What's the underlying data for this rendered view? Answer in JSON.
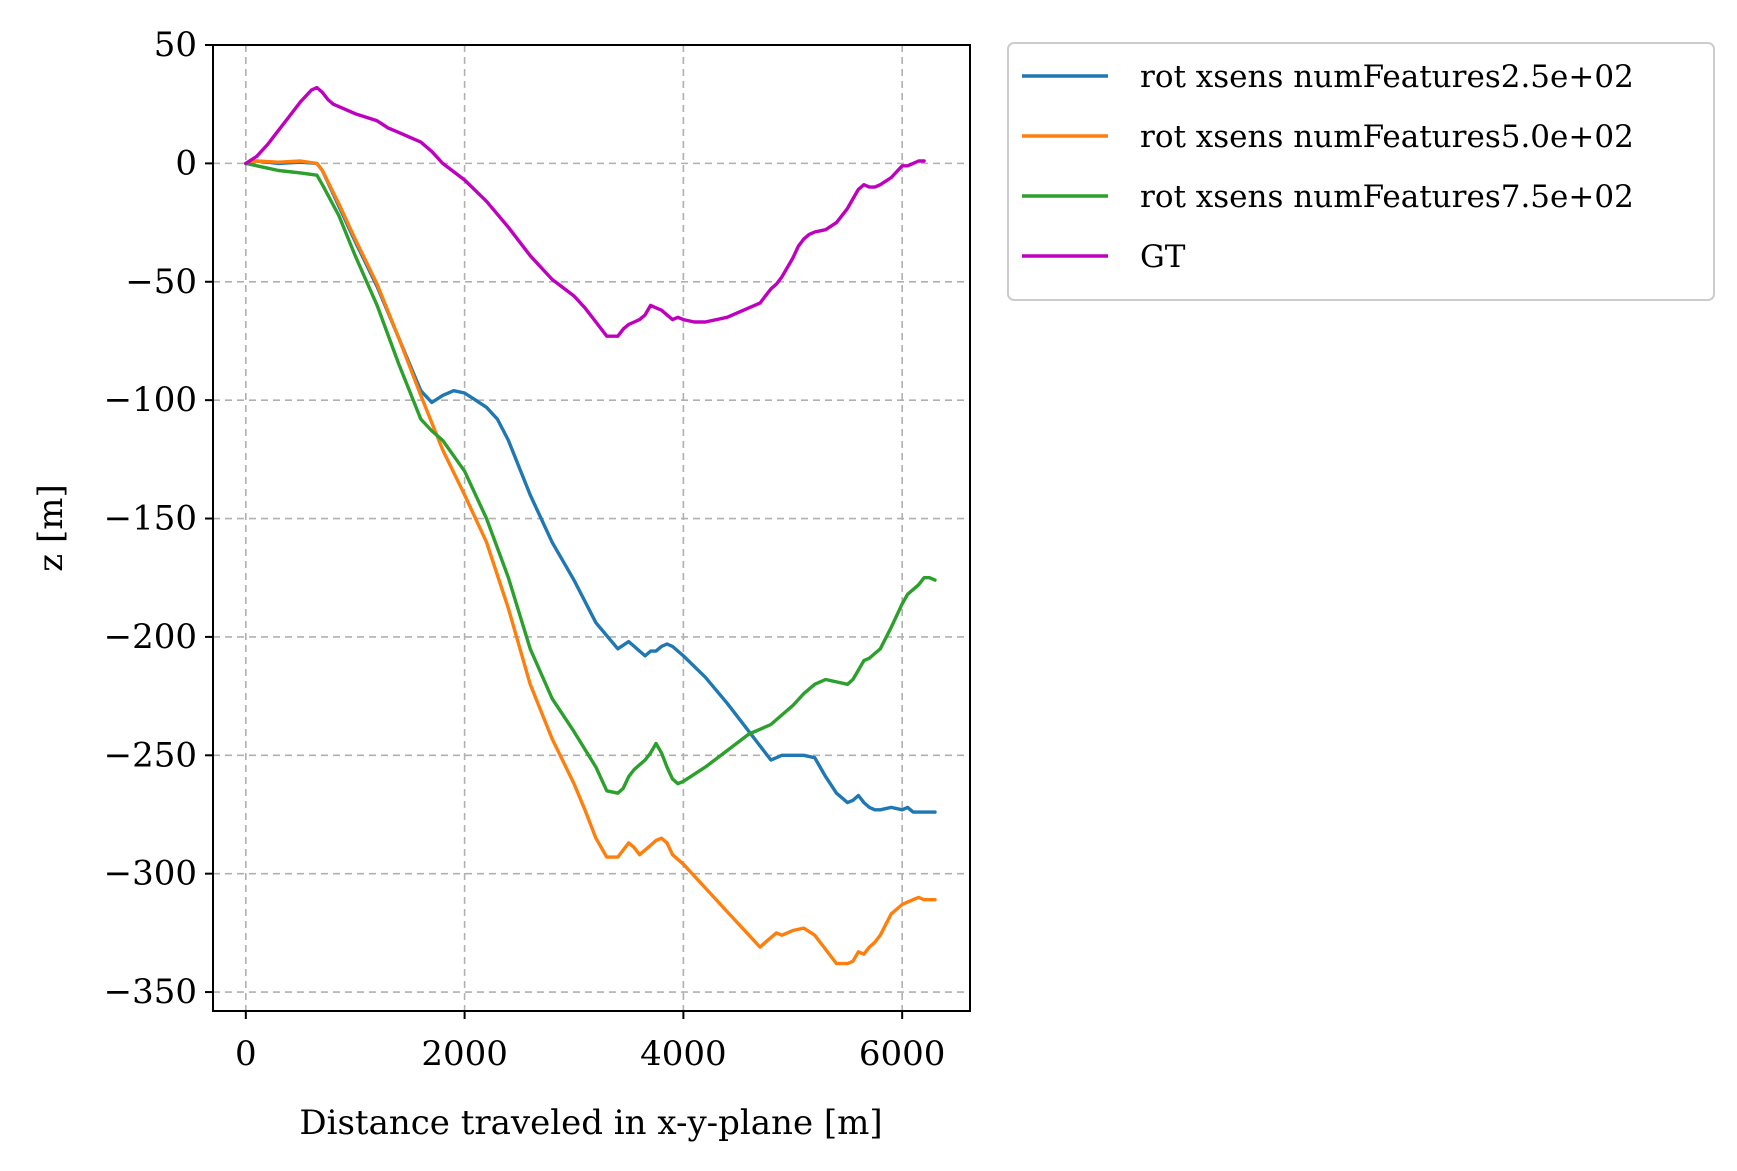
{
  "chart_data": {
    "type": "line",
    "xlabel": "Distance traveled in x-y-plane [m]",
    "ylabel": "z [m]",
    "xlim": [
      -300,
      6620
    ],
    "ylim": [
      -358,
      50
    ],
    "xticks": [
      0,
      2000,
      4000,
      6000
    ],
    "xtick_labels": [
      "0",
      "2000",
      "4000",
      "6000"
    ],
    "yticks": [
      50,
      0,
      -50,
      -100,
      -150,
      -200,
      -250,
      -300,
      -350
    ],
    "ytick_labels": [
      "50",
      "0",
      "−50",
      "−100",
      "−150",
      "−200",
      "−250",
      "−300",
      "−350"
    ],
    "grid": true,
    "legend_position": "outside-upper-right",
    "series": [
      {
        "name": "rot xsens numFeatures2.5e+02",
        "color": "#1f77b4",
        "x": [
          0,
          100,
          300,
          500,
          650,
          700,
          850,
          1000,
          1200,
          1400,
          1600,
          1700,
          1800,
          1900,
          2000,
          2100,
          2200,
          2300,
          2400,
          2600,
          2800,
          3000,
          3200,
          3400,
          3500,
          3550,
          3600,
          3650,
          3700,
          3750,
          3800,
          3850,
          3900,
          4000,
          4200,
          4400,
          4600,
          4800,
          4850,
          4900,
          4950,
          5000,
          5100,
          5200,
          5300,
          5400,
          5500,
          5550,
          5600,
          5650,
          5700,
          5750,
          5800,
          5900,
          6000,
          6050,
          6100,
          6150,
          6200,
          6300
        ],
        "y": [
          0,
          1,
          0,
          0.5,
          0,
          -3,
          -18,
          -33,
          -52,
          -74,
          -96,
          -101,
          -98,
          -96,
          -97,
          -100,
          -103,
          -108,
          -117,
          -140,
          -160,
          -176,
          -194,
          -205,
          -202,
          -204,
          -206,
          -208,
          -206,
          -206,
          -204,
          -203,
          -204,
          -208,
          -217,
          -228,
          -240,
          -252,
          -251,
          -250,
          -250,
          -250,
          -250,
          -251,
          -259,
          -266,
          -270,
          -269,
          -267,
          -270,
          -272,
          -273,
          -273,
          -272,
          -273,
          -272,
          -274,
          -274,
          -274,
          -274
        ]
      },
      {
        "name": "rot xsens numFeatures5.0e+02",
        "color": "#ff7f0e",
        "x": [
          0,
          100,
          300,
          500,
          650,
          700,
          850,
          1000,
          1200,
          1400,
          1600,
          1800,
          2000,
          2200,
          2400,
          2600,
          2800,
          3000,
          3100,
          3200,
          3300,
          3400,
          3450,
          3500,
          3550,
          3600,
          3650,
          3700,
          3750,
          3800,
          3850,
          3900,
          4000,
          4200,
          4400,
          4600,
          4700,
          4750,
          4800,
          4850,
          4900,
          4950,
          5000,
          5100,
          5200,
          5300,
          5400,
          5500,
          5550,
          5600,
          5650,
          5700,
          5750,
          5800,
          5900,
          6000,
          6050,
          6100,
          6150,
          6200,
          6300
        ],
        "y": [
          0,
          1,
          0.5,
          1,
          0,
          -3,
          -17,
          -32,
          -51,
          -74,
          -98,
          -121,
          -140,
          -160,
          -188,
          -220,
          -243,
          -262,
          -273,
          -285,
          -293,
          -293,
          -290,
          -287,
          -289,
          -292,
          -290,
          -288,
          -286,
          -285,
          -287,
          -292,
          -296,
          -306,
          -316,
          -326,
          -331,
          -329,
          -327,
          -325,
          -326,
          -325,
          -324,
          -323,
          -326,
          -332,
          -338,
          -338,
          -337,
          -333,
          -334,
          -331,
          -329,
          -326,
          -317,
          -313,
          -312,
          -311,
          -310,
          -311,
          -311
        ]
      },
      {
        "name": "rot xsens numFeatures7.5e+02",
        "color": "#2ca02c",
        "x": [
          0,
          100,
          300,
          500,
          650,
          700,
          850,
          1000,
          1200,
          1400,
          1600,
          1700,
          1800,
          2000,
          2200,
          2400,
          2600,
          2800,
          3000,
          3200,
          3300,
          3400,
          3450,
          3500,
          3550,
          3600,
          3650,
          3700,
          3750,
          3800,
          3850,
          3900,
          3950,
          4000,
          4200,
          4400,
          4600,
          4700,
          4800,
          4900,
          5000,
          5100,
          5200,
          5300,
          5400,
          5500,
          5550,
          5600,
          5650,
          5700,
          5750,
          5800,
          5900,
          6000,
          6050,
          6100,
          6150,
          6200,
          6250,
          6300
        ],
        "y": [
          0,
          -1,
          -3,
          -4,
          -5,
          -9,
          -22,
          -39,
          -60,
          -85,
          -108,
          -113,
          -117,
          -130,
          -150,
          -175,
          -205,
          -226,
          -240,
          -255,
          -265,
          -266,
          -264,
          -259,
          -256,
          -254,
          -252,
          -249,
          -245,
          -249,
          -255,
          -260,
          -262,
          -261,
          -255,
          -248,
          -241,
          -239,
          -237,
          -233,
          -229,
          -224,
          -220,
          -218,
          -219,
          -220,
          -218,
          -214,
          -210,
          -209,
          -207,
          -205,
          -196,
          -186,
          -182,
          -180,
          -178,
          -175,
          -175,
          -176
        ]
      },
      {
        "name": "GT",
        "color": "#bf00bf",
        "x": [
          0,
          100,
          200,
          300,
          400,
          500,
          600,
          650,
          700,
          750,
          800,
          900,
          1000,
          1200,
          1300,
          1400,
          1600,
          1700,
          1800,
          2000,
          2200,
          2400,
          2600,
          2800,
          3000,
          3100,
          3200,
          3300,
          3350,
          3400,
          3450,
          3500,
          3550,
          3600,
          3650,
          3700,
          3750,
          3800,
          3850,
          3900,
          3950,
          4000,
          4100,
          4200,
          4400,
          4600,
          4700,
          4750,
          4800,
          4850,
          4900,
          5000,
          5050,
          5100,
          5150,
          5200,
          5300,
          5400,
          5500,
          5550,
          5600,
          5650,
          5700,
          5750,
          5800,
          5900,
          6000,
          6050,
          6100,
          6150,
          6200
        ],
        "y": [
          0,
          3,
          8,
          14,
          20,
          26,
          31,
          32,
          30,
          27,
          25,
          23,
          21,
          18,
          15,
          13,
          9,
          5,
          0,
          -7,
          -16,
          -27,
          -39,
          -49,
          -56,
          -61,
          -67,
          -73,
          -73,
          -73,
          -70,
          -68,
          -67,
          -66,
          -64,
          -60,
          -61,
          -62,
          -64,
          -66,
          -65,
          -66,
          -67,
          -67,
          -65,
          -61,
          -59,
          -56,
          -53,
          -51,
          -48,
          -40,
          -35,
          -32,
          -30,
          -29,
          -28,
          -25,
          -19,
          -15,
          -11,
          -9,
          -10,
          -10,
          -9,
          -6,
          -1,
          -1,
          0,
          1,
          1
        ]
      }
    ]
  }
}
